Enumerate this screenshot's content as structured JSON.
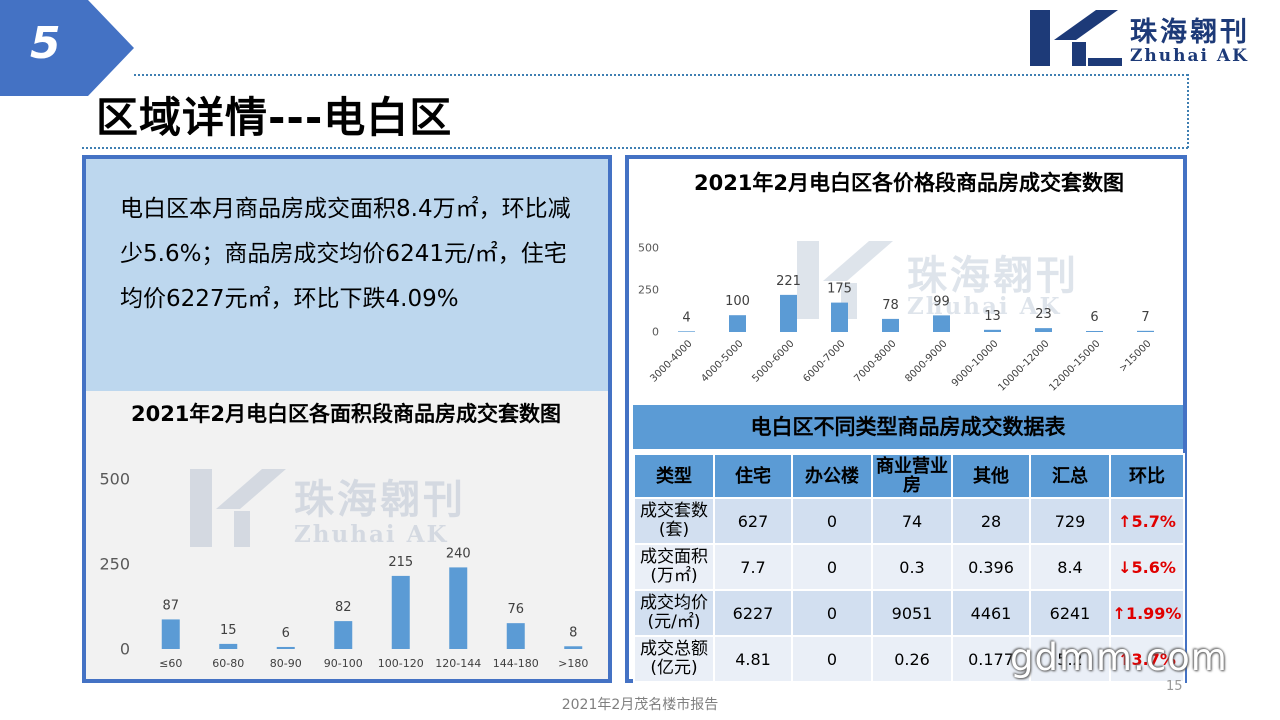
{
  "slide": {
    "section_number": "5",
    "title": "区域详情---电白区",
    "page_number": "15",
    "footer": "2021年2月茂名楼市报告",
    "site_mark": "gdmm.com"
  },
  "logo": {
    "icon": "zhuhai-ak-logo-icon",
    "name_cn": "珠海翱刊",
    "name_en": "Zhuhai AK"
  },
  "summary": {
    "text": "电白区本月商品房成交面积8.4万㎡，环比减少5.6%；商品房成交均价6241元/㎡，住宅均价6227元㎡，环比下跌4.09%"
  },
  "colors": {
    "accent": "#4472c4",
    "bar": "#5b9bd5",
    "summary_bg": "#bdd7ee",
    "change_red": "#e00000"
  },
  "chart_data": [
    {
      "id": "area",
      "type": "bar",
      "title": "2021年2月电白区各面积段商品房成交套数图",
      "categories": [
        "≤60",
        "60-80",
        "80-90",
        "90-100",
        "100-120",
        "120-144",
        "144-180",
        ">180"
      ],
      "values": [
        87,
        15,
        6,
        82,
        215,
        240,
        76,
        8
      ],
      "ylim": [
        0,
        500
      ],
      "yticks": [
        0,
        250,
        500
      ],
      "grid": false,
      "legend": "none"
    },
    {
      "id": "price",
      "type": "bar",
      "title": "2021年2月电白区各价格段商品房成交套数图",
      "categories": [
        "3000-4000",
        "4000-5000",
        "5000-6000",
        "6000-7000",
        "7000-8000",
        "8000-9000",
        "9000-10000",
        "10000-12000",
        "12000-15000",
        ">15000"
      ],
      "values": [
        4,
        100,
        221,
        175,
        78,
        99,
        13,
        23,
        6,
        7
      ],
      "ylim": [
        0,
        500
      ],
      "yticks": [
        0,
        250,
        500
      ],
      "grid": false,
      "legend": "none"
    }
  ],
  "table": {
    "title": "电白区不同类型商品房成交数据表",
    "headers": [
      "类型",
      "住宅",
      "办公楼",
      "商业营业房",
      "其他",
      "汇总",
      "环比"
    ],
    "rows": [
      {
        "label": "成交套数(套)",
        "values": [
          "627",
          "0",
          "74",
          "28",
          "729"
        ],
        "change": "↑5.7%"
      },
      {
        "label": "成交面积(万㎡)",
        "values": [
          "7.7",
          "0",
          "0.3",
          "0.396",
          "8.4"
        ],
        "change": "↓5.6%"
      },
      {
        "label": "成交均价(元/㎡)",
        "values": [
          "6227",
          "0",
          "9051",
          "4461",
          "6241"
        ],
        "change": "↑1.99%"
      },
      {
        "label": "成交总额(亿元)",
        "values": [
          "4.81",
          "0",
          "0.26",
          "0.177",
          "5.2"
        ],
        "change": "↑3.7%"
      }
    ]
  }
}
